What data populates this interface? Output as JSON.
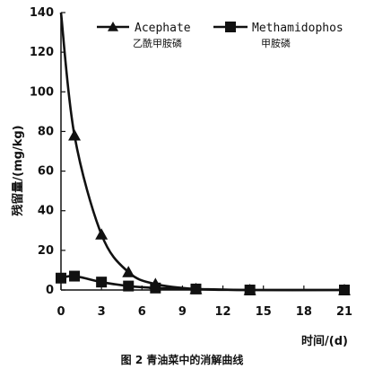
{
  "chart_data": {
    "type": "line",
    "title": "",
    "caption": "图 2 青油菜中的消解曲线",
    "xlabel": "时间/(d)",
    "ylabel": "残留量/(mg/kg)",
    "xlim": [
      0,
      21
    ],
    "ylim": [
      0,
      140
    ],
    "xticks": [
      0,
      3,
      6,
      9,
      12,
      15,
      18,
      21
    ],
    "yticks": [
      0,
      20,
      40,
      60,
      80,
      100,
      120,
      140
    ],
    "grid": false,
    "legend_position": "top",
    "series": [
      {
        "name": "Acephate",
        "name_cn": "乙酰甲胺磷",
        "marker": "triangle",
        "x": [
          0,
          1,
          3,
          5,
          7,
          10,
          14,
          21
        ],
        "y": [
          140,
          78,
          28,
          9,
          3,
          0.5,
          0,
          0
        ]
      },
      {
        "name": "Methamidophos",
        "name_cn": "甲胺磷",
        "marker": "square",
        "x": [
          0,
          1,
          3,
          5,
          7,
          10,
          14,
          21
        ],
        "y": [
          6,
          7,
          4,
          2,
          1,
          0.5,
          0,
          0
        ]
      }
    ]
  }
}
